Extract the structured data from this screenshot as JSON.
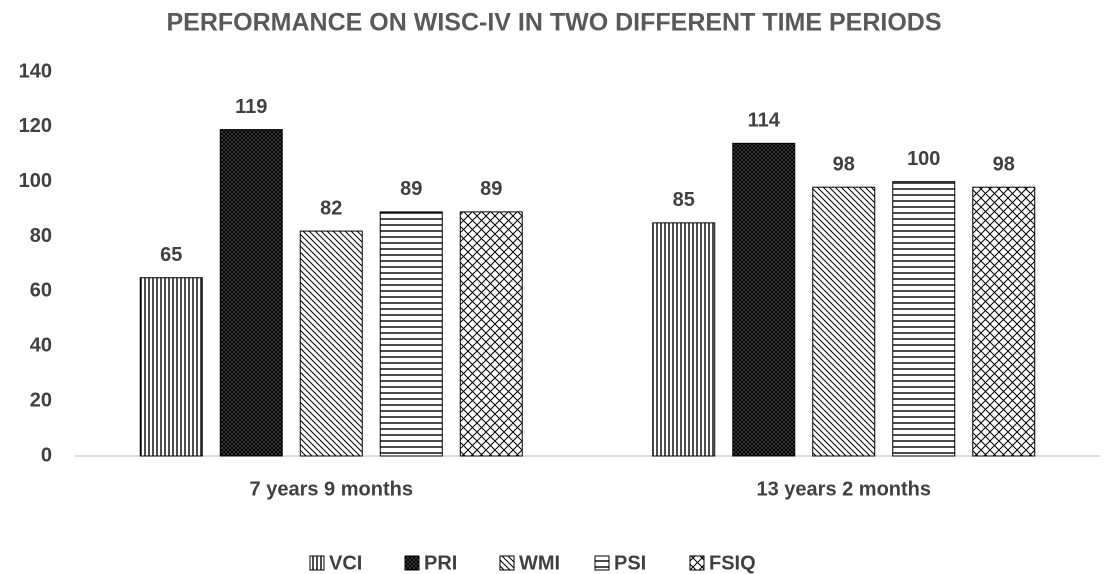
{
  "chart_data": {
    "type": "bar",
    "title": "PERFORMANCE ON WISC-IV IN TWO DIFFERENT TIME PERIODS",
    "categories": [
      "7 years 9 months",
      "13 years 2 months"
    ],
    "series": [
      {
        "name": "VCI",
        "color": "#000000",
        "pattern": "vertical",
        "values": [
          65,
          85
        ]
      },
      {
        "name": "PRI",
        "color": "#000000",
        "pattern": "dense-cross",
        "values": [
          119,
          114
        ]
      },
      {
        "name": "WMI",
        "color": "#000000",
        "pattern": "diagonal",
        "values": [
          82,
          98
        ]
      },
      {
        "name": "PSI",
        "color": "#000000",
        "pattern": "horizontal",
        "values": [
          89,
          100
        ]
      },
      {
        "name": "FSIQ",
        "color": "#000000",
        "pattern": "diagonal-cross",
        "values": [
          89,
          98
        ]
      }
    ],
    "ylim": [
      0,
      140
    ],
    "yticks": [
      0,
      20,
      40,
      60,
      80,
      100,
      120,
      140
    ],
    "grid": false,
    "legend": "bottom",
    "data_labels": true
  }
}
